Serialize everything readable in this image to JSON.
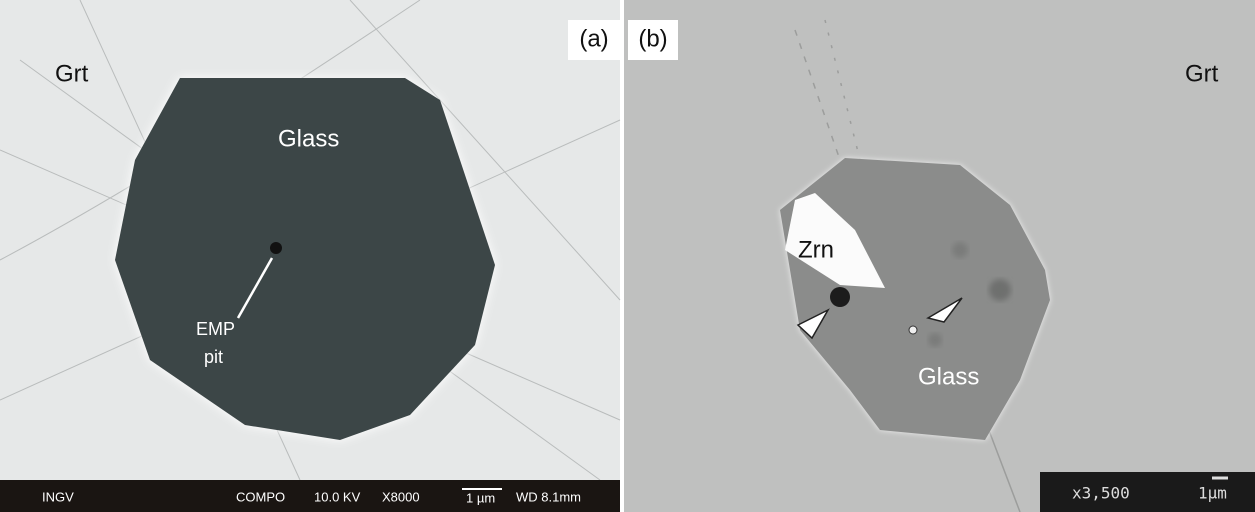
{
  "panels": [
    {
      "tag": "(a)",
      "labels": [
        "Grt",
        "Glass",
        "EMP",
        "pit"
      ],
      "footer": [
        "INGV",
        "COMPO",
        "10.0 KV",
        "X8000",
        "1 µm",
        "WD 8.1mm"
      ]
    },
    {
      "tag": "(b)",
      "labels": [
        "Grt",
        "Zrn",
        "Glass"
      ],
      "footer": [
        "x3,500",
        "1µm"
      ]
    }
  ]
}
